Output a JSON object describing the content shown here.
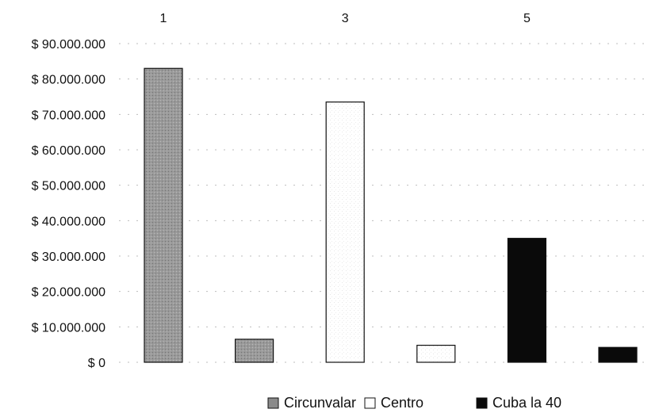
{
  "chart_data": {
    "type": "bar",
    "top_labels": [
      "1",
      "3",
      "5"
    ],
    "bars": [
      {
        "series": "Circunvalar",
        "value": 83000000
      },
      {
        "series": "Circunvalar",
        "value": 6500000
      },
      {
        "series": "Centro",
        "value": 73500000
      },
      {
        "series": "Centro",
        "value": 4800000
      },
      {
        "series": "Cuba la 40",
        "value": 35000000
      },
      {
        "series": "Cuba la 40",
        "value": 4200000
      }
    ],
    "series": [
      {
        "name": "Circunvalar",
        "color": "#9a9a9a",
        "pattern": "hatched"
      },
      {
        "name": "Centro",
        "color": "#ffffff",
        "pattern": "hatched"
      },
      {
        "name": "Cuba la 40",
        "color": "#0a0a0a",
        "pattern": "solid"
      }
    ],
    "y_ticks": [
      "$ 0",
      "$ 10.000.000",
      "$ 20.000.000",
      "$ 30.000.000",
      "$ 40.000.000",
      "$ 50.000.000",
      "$ 60.000.000",
      "$ 70.000.000",
      "$ 80.000.000",
      "$ 90.000.000"
    ],
    "ylim": [
      0,
      90000000
    ],
    "grid": true,
    "legend_position": "bottom-right",
    "title": "",
    "xlabel": "",
    "ylabel": ""
  }
}
